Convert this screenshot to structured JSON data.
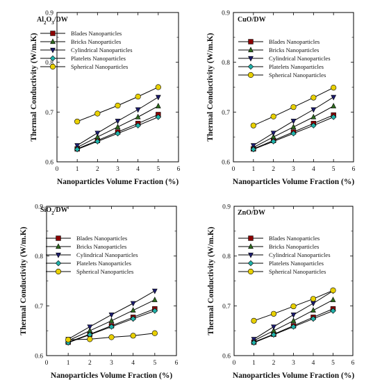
{
  "figure": {
    "background": "#ffffff"
  },
  "legend_entries": [
    {
      "name": "Blades Nanoparticles",
      "color": "#8b0000",
      "marker": "square"
    },
    {
      "name": "Bricks Nanoparticles",
      "color": "#2e6b1f",
      "marker": "triangle-up"
    },
    {
      "name": "Cylindrical Nanoparticles",
      "color": "#1c1c6e",
      "marker": "triangle-down"
    },
    {
      "name": "Platelets Nanoparticles",
      "color": "#20b2aa",
      "marker": "diamond"
    },
    {
      "name": "Spherical Nanoparticles",
      "color": "#e8d000",
      "marker": "circle"
    }
  ],
  "chart_data": [
    {
      "type": "line",
      "title": "Al2O3/DW",
      "xlabel": "Nanoparticles Volume Fraction (%)",
      "ylabel": "Thermal Conductivity (W/m.K)",
      "xlim": [
        0,
        6
      ],
      "ylim": [
        0.6,
        0.9
      ],
      "xticks": [
        0,
        1,
        2,
        3,
        4,
        5,
        6
      ],
      "yticks": [
        0.6,
        0.7,
        0.8,
        0.9
      ],
      "legend_position": "upper-left",
      "x": [
        1,
        2,
        3,
        4,
        5
      ],
      "series": [
        {
          "name": "Blades Nanoparticles",
          "values": [
            0.626,
            0.643,
            0.66,
            0.677,
            0.695
          ]
        },
        {
          "name": "Bricks Nanoparticles",
          "values": [
            0.629,
            0.65,
            0.67,
            0.69,
            0.712
          ]
        },
        {
          "name": "Cylindrical Nanoparticles",
          "values": [
            0.633,
            0.658,
            0.682,
            0.705,
            0.73
          ]
        },
        {
          "name": "Platelets Nanoparticles",
          "values": [
            0.625,
            0.641,
            0.657,
            0.673,
            0.69
          ]
        },
        {
          "name": "Spherical Nanoparticles",
          "values": [
            0.681,
            0.697,
            0.713,
            0.731,
            0.75
          ]
        }
      ]
    },
    {
      "type": "line",
      "title": "CuO/DW",
      "xlabel": "Nanoparticles Volume Fraction (%)",
      "ylabel": "Thermal Conductivity (W/m.K)",
      "xlim": [
        0,
        6
      ],
      "ylim": [
        0.6,
        0.9
      ],
      "xticks": [
        0,
        1,
        2,
        3,
        4,
        5,
        6
      ],
      "yticks": [
        0.6,
        0.7,
        0.8,
        0.9
      ],
      "legend_position": "upper-center",
      "x": [
        1,
        2,
        3,
        4,
        5
      ],
      "series": [
        {
          "name": "Blades Nanoparticles",
          "values": [
            0.626,
            0.643,
            0.66,
            0.677,
            0.694
          ]
        },
        {
          "name": "Bricks Nanoparticles",
          "values": [
            0.629,
            0.65,
            0.67,
            0.69,
            0.712
          ]
        },
        {
          "name": "Cylindrical Nanoparticles",
          "values": [
            0.633,
            0.658,
            0.682,
            0.705,
            0.73
          ]
        },
        {
          "name": "Platelets Nanoparticles",
          "values": [
            0.625,
            0.641,
            0.657,
            0.673,
            0.69
          ]
        },
        {
          "name": "Spherical Nanoparticles",
          "values": [
            0.673,
            0.691,
            0.71,
            0.729,
            0.749
          ]
        }
      ]
    },
    {
      "type": "line",
      "title": "SiO2/DW",
      "xlabel": "Nanoparticles Volume Fraction (%)",
      "ylabel": "Thermal Conductivity (W/m.K)",
      "xlim": [
        0,
        6
      ],
      "ylim": [
        0.6,
        0.9
      ],
      "xticks": [
        0,
        1,
        2,
        3,
        4,
        5,
        6
      ],
      "yticks": [
        0.6,
        0.7,
        0.8,
        0.9
      ],
      "legend_position": "upper-center",
      "x": [
        1,
        2,
        3,
        4,
        5
      ],
      "series": [
        {
          "name": "Blades Nanoparticles",
          "values": [
            0.627,
            0.643,
            0.66,
            0.677,
            0.694
          ]
        },
        {
          "name": "Bricks Nanoparticles",
          "values": [
            0.63,
            0.65,
            0.67,
            0.691,
            0.712
          ]
        },
        {
          "name": "Cylindrical Nanoparticles",
          "values": [
            0.633,
            0.658,
            0.682,
            0.705,
            0.73
          ]
        },
        {
          "name": "Platelets Nanoparticles",
          "values": [
            0.626,
            0.642,
            0.658,
            0.674,
            0.69
          ]
        },
        {
          "name": "Spherical Nanoparticles",
          "values": [
            0.632,
            0.633,
            0.637,
            0.64,
            0.645
          ]
        }
      ]
    },
    {
      "type": "line",
      "title": "ZnO/DW",
      "xlabel": "Nanoparticles Volume Fraction (%)",
      "ylabel": "Thermal Conductivity (W/m.K)",
      "xlim": [
        0,
        6
      ],
      "ylim": [
        0.6,
        0.9
      ],
      "xticks": [
        0,
        1,
        2,
        3,
        4,
        5,
        6
      ],
      "yticks": [
        0.6,
        0.7,
        0.8,
        0.9
      ],
      "legend_position": "upper-center",
      "x": [
        1,
        2,
        3,
        4,
        5
      ],
      "series": [
        {
          "name": "Blades Nanoparticles",
          "values": [
            0.627,
            0.643,
            0.66,
            0.677,
            0.694
          ]
        },
        {
          "name": "Bricks Nanoparticles",
          "values": [
            0.63,
            0.65,
            0.67,
            0.691,
            0.712
          ]
        },
        {
          "name": "Cylindrical Nanoparticles",
          "values": [
            0.633,
            0.658,
            0.682,
            0.705,
            0.73
          ]
        },
        {
          "name": "Platelets Nanoparticles",
          "values": [
            0.626,
            0.642,
            0.658,
            0.674,
            0.69
          ]
        },
        {
          "name": "Spherical Nanoparticles",
          "values": [
            0.67,
            0.684,
            0.699,
            0.714,
            0.731
          ]
        }
      ]
    }
  ]
}
